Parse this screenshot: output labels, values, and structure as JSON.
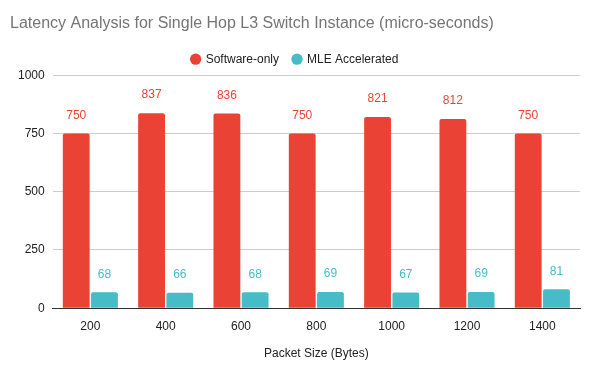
{
  "chart_data": {
    "type": "bar",
    "title": "Latency Analysis for Single Hop L3 Switch Instance (micro-seconds)",
    "x_label": "Packet Size (Bytes)",
    "categories": [
      "200",
      "400",
      "600",
      "800",
      "1000",
      "1200",
      "1400"
    ],
    "series": [
      {
        "name": "Software-only",
        "color": "#ea4335",
        "values": [
          750,
          837,
          836,
          750,
          821,
          812,
          750
        ]
      },
      {
        "name": "MLE Accelerated",
        "color": "#46bdc6",
        "values": [
          68,
          66,
          68,
          69,
          67,
          69,
          81
        ]
      }
    ],
    "ylim": [
      0,
      1000
    ],
    "yticks": [
      0,
      250,
      500,
      750,
      1000
    ],
    "grid": true,
    "legend": "top",
    "data_labels": true
  }
}
